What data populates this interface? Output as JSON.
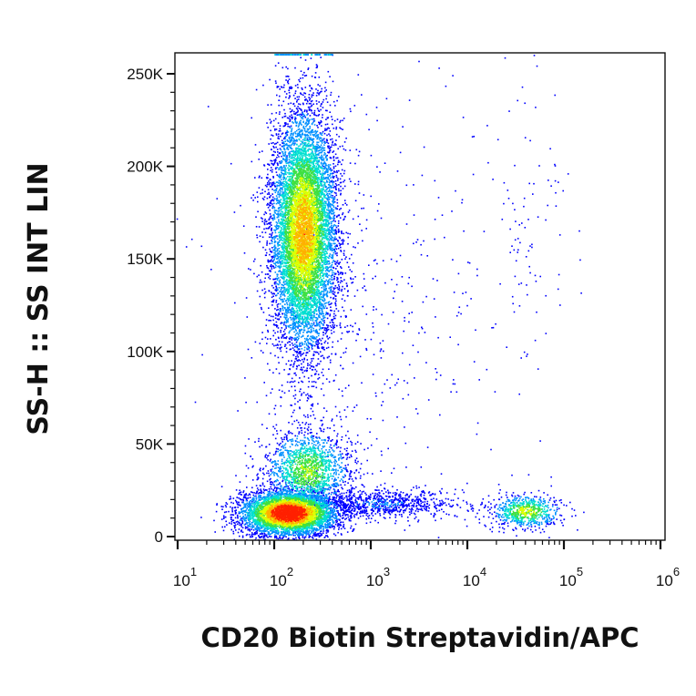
{
  "chart_data": {
    "type": "scatter",
    "subtype": "flow-cytometry-density-dot-plot",
    "xlabel": "CD20 Biotin Streptavidin/APC",
    "ylabel": "SS-H :: SS INT LIN",
    "x_scale": "log",
    "y_scale": "linear",
    "xlim": [
      5,
      120000
    ],
    "ylim": [
      -2000,
      262000
    ],
    "x_ticks": [
      {
        "value": 10,
        "base": "10",
        "exp": "1"
      },
      {
        "value": 100,
        "base": "10",
        "exp": "2"
      },
      {
        "value": 1000,
        "base": "10",
        "exp": "3"
      },
      {
        "value": 10000,
        "base": "10",
        "exp": "4"
      },
      {
        "value": 100000,
        "base": "10",
        "exp": "5"
      },
      {
        "value": 1000000,
        "base": "10",
        "exp": "6"
      }
    ],
    "y_ticks": [
      {
        "value": 0,
        "label": "0"
      },
      {
        "value": 50000,
        "label": "50K"
      },
      {
        "value": 100000,
        "label": "100K"
      },
      {
        "value": 150000,
        "label": "150K"
      },
      {
        "value": 200000,
        "label": "200K"
      },
      {
        "value": 250000,
        "label": "250K"
      }
    ],
    "density_colors": [
      "#0000ff",
      "#0090ff",
      "#00e0d0",
      "#40e040",
      "#e0ff00",
      "#ffb000",
      "#ff2000"
    ],
    "populations": [
      {
        "x_center": 140,
        "y_center": 13000,
        "count": 5200,
        "density": 1.0,
        "x_spread_decades": 0.25,
        "y_spread": 6000
      },
      {
        "x_center": 220,
        "y_center": 36000,
        "count": 1600,
        "density": 0.55,
        "x_spread_decades": 0.22,
        "y_spread": 11000
      },
      {
        "x_center": 200,
        "y_center": 165000,
        "count": 9000,
        "density": 0.75,
        "x_spread_decades": 0.17,
        "y_spread": 33000
      },
      {
        "x_center": 40000,
        "y_center": 14000,
        "count": 700,
        "density": 0.6,
        "x_spread_decades": 0.18,
        "y_spread": 4500
      },
      {
        "x_center": 1200,
        "y_center": 18000,
        "count": 900,
        "density": 0.15,
        "x_spread_decades": 0.45,
        "y_spread": 4000
      },
      {
        "x_center": 45000,
        "y_center": 175000,
        "count": 90,
        "density": 0.05,
        "x_spread_decades": 0.25,
        "y_spread": 45000
      },
      {
        "x_center": 800,
        "y_center": 120000,
        "count": 500,
        "density": 0.05,
        "x_spread_decades": 0.7,
        "y_spread": 70000
      }
    ]
  }
}
